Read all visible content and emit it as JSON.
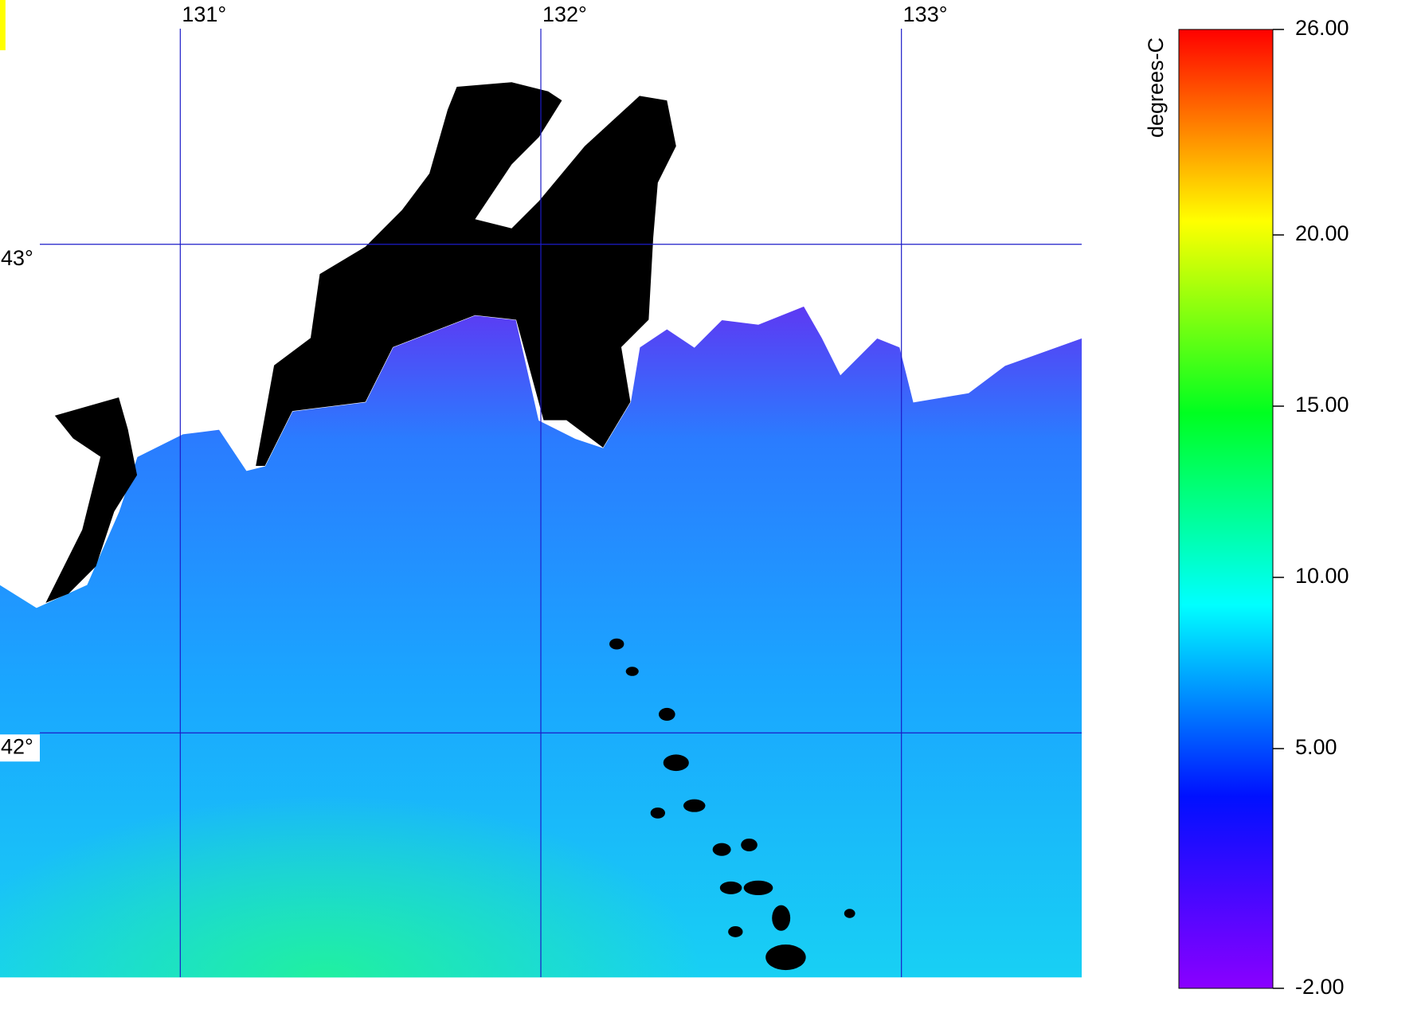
{
  "map": {
    "type": "sst-map",
    "lonlim": [
      130.5,
      133.5
    ],
    "latlim": [
      41.5,
      43.5
    ],
    "lon_ticks": [
      {
        "value": 131,
        "label": "131°"
      },
      {
        "value": 132,
        "label": "132°"
      },
      {
        "value": 133,
        "label": "133°"
      }
    ],
    "lat_ticks": [
      {
        "value": 43,
        "label": "43°"
      },
      {
        "value": 42,
        "label": "42°"
      }
    ],
    "grid_color": "#1c1cc8"
  },
  "colorbar": {
    "label": "degrees-C",
    "lim": [
      -2,
      26
    ],
    "ticks": [
      {
        "value": -2,
        "label": "-2.00"
      },
      {
        "value": 5,
        "label": "5.00"
      },
      {
        "value": 10,
        "label": "10.00"
      },
      {
        "value": 15,
        "label": "15.00"
      },
      {
        "value": 20,
        "label": "20.00"
      },
      {
        "value": 26,
        "label": "26.00"
      }
    ],
    "colors": [
      "#8a00ff",
      "#0010ff",
      "#00ffff",
      "#00ff20",
      "#ffff00",
      "#ff0000"
    ]
  }
}
